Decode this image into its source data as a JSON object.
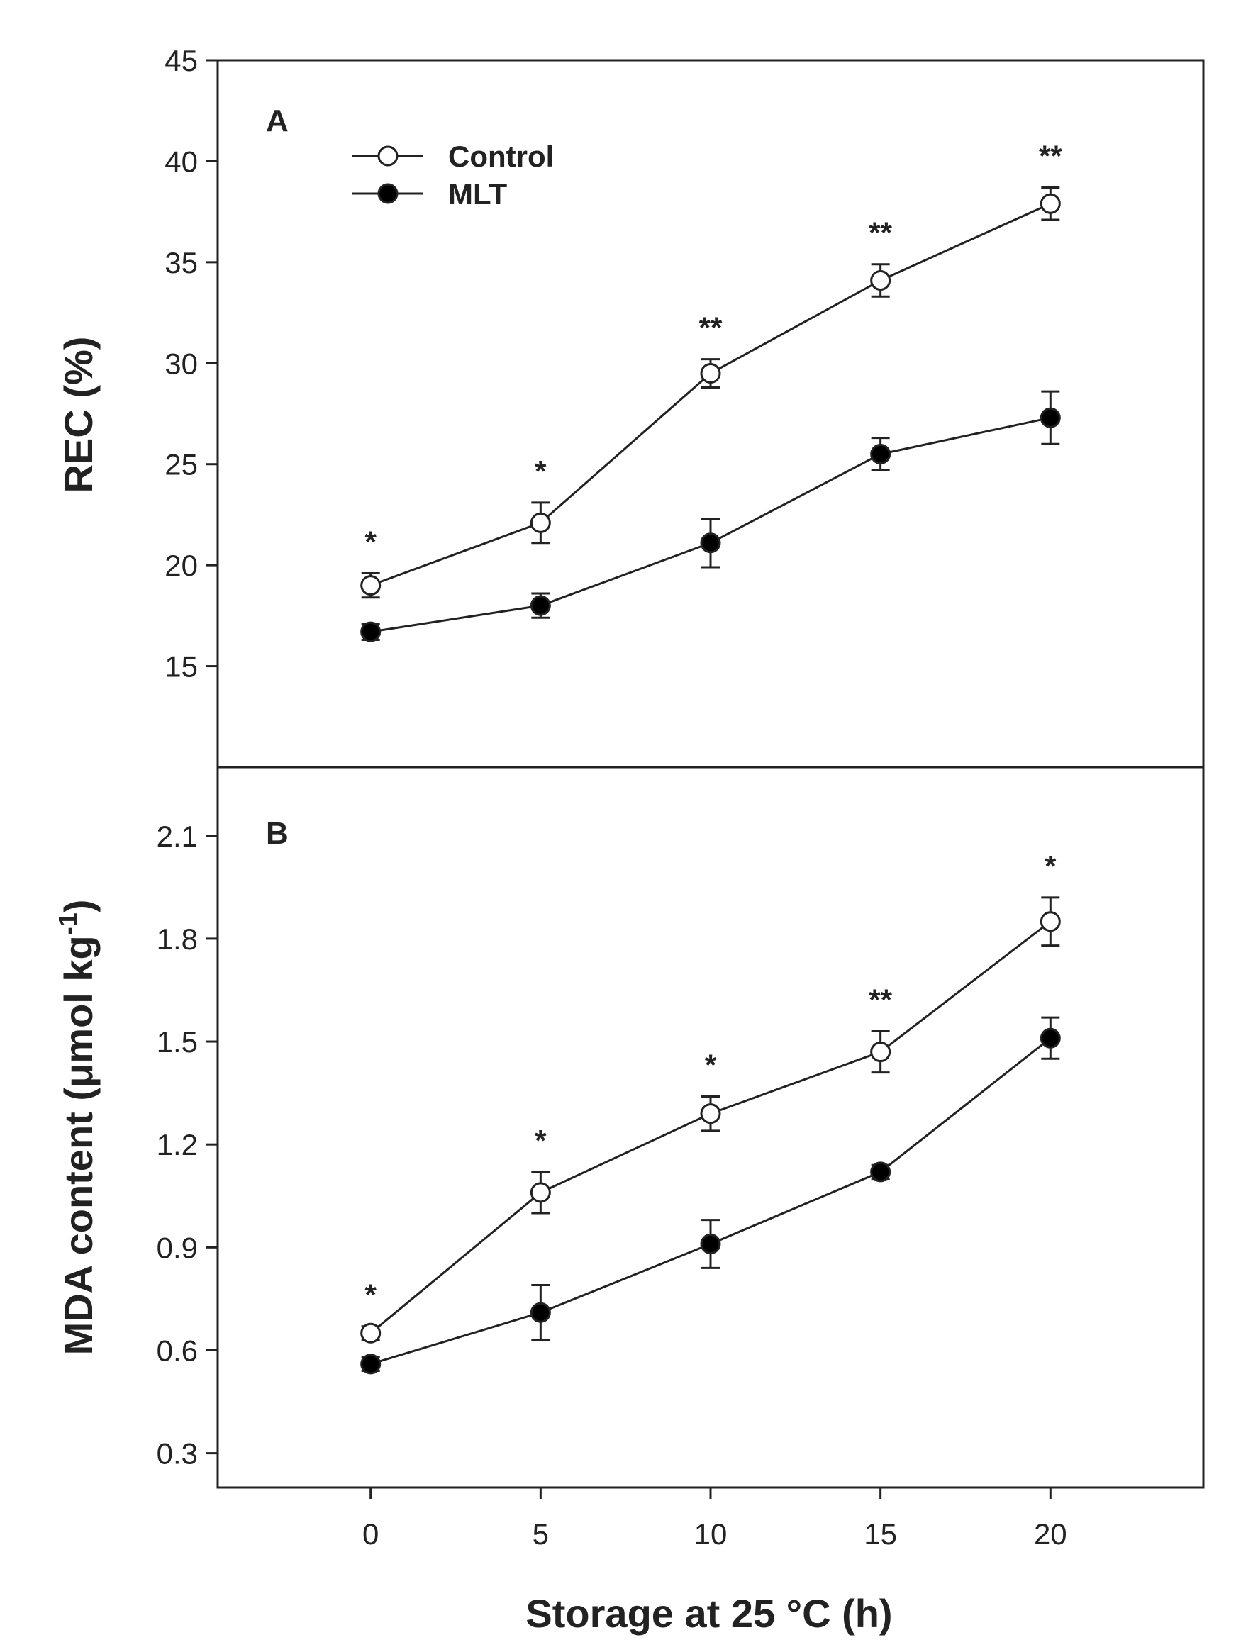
{
  "colors": {
    "control_marker": "#ffffff",
    "mlt_marker": "#000000",
    "line": "#222222",
    "background": "#ffffff"
  },
  "chart_data": [
    {
      "type": "line",
      "panel": "A",
      "ylabel": "REC (%)",
      "xlabel": "",
      "ylim": [
        10,
        45
      ],
      "yticks": [
        15,
        20,
        25,
        30,
        35,
        40,
        45
      ],
      "x": [
        0,
        5,
        10,
        15,
        20
      ],
      "xlim": [
        -4.5,
        24.5
      ],
      "legend": {
        "placement": "top-left"
      },
      "series": [
        {
          "name": "Control",
          "marker": "open-circle",
          "values": [
            19.0,
            22.1,
            29.5,
            34.1,
            37.9
          ],
          "errors": [
            0.6,
            1.0,
            0.7,
            0.8,
            0.8
          ]
        },
        {
          "name": "MLT",
          "marker": "filled-circle",
          "values": [
            16.7,
            18.0,
            21.1,
            25.5,
            27.3
          ],
          "errors": [
            0.4,
            0.6,
            1.2,
            0.8,
            1.3
          ]
        }
      ],
      "significance": [
        "*",
        "*",
        "**",
        "**",
        "**"
      ]
    },
    {
      "type": "line",
      "panel": "B",
      "ylabel_main": "MDA content (μmol kg",
      "ylabel_sup": "-1",
      "ylabel_close": ")",
      "xlabel": "Storage at 25 °C (h)",
      "ylim": [
        0.2,
        2.3
      ],
      "yticks": [
        0.3,
        0.6,
        0.9,
        1.2,
        1.5,
        1.8,
        2.1
      ],
      "ytick_labels": [
        "0.3",
        "0.6",
        "0.9",
        "1.2",
        "1.5",
        "1.8",
        "2.1"
      ],
      "x": [
        0,
        5,
        10,
        15,
        20
      ],
      "xlim": [
        -4.5,
        24.5
      ],
      "xticks": [
        0,
        5,
        10,
        15,
        20
      ],
      "series": [
        {
          "name": "Control",
          "marker": "open-circle",
          "values": [
            0.65,
            1.06,
            1.29,
            1.47,
            1.85
          ],
          "errors": [
            0.02,
            0.06,
            0.05,
            0.06,
            0.07
          ]
        },
        {
          "name": "MLT",
          "marker": "filled-circle",
          "values": [
            0.56,
            0.71,
            0.91,
            1.12,
            1.51
          ],
          "errors": [
            0.02,
            0.08,
            0.07,
            0.02,
            0.06
          ]
        }
      ],
      "significance": [
        "*",
        "*",
        "*",
        "**",
        "*"
      ]
    }
  ]
}
